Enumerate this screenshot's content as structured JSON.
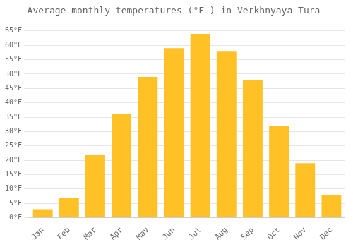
{
  "chart_data": {
    "type": "bar",
    "title": "Average monthly temperatures (°F ) in Verkhnyaya Tura",
    "categories": [
      "Jan",
      "Feb",
      "Mar",
      "Apr",
      "May",
      "Jun",
      "Jul",
      "Aug",
      "Sep",
      "Oct",
      "Nov",
      "Dec"
    ],
    "values": [
      3,
      7,
      22,
      36,
      49,
      59,
      64,
      58,
      48,
      32,
      19,
      8
    ],
    "color": "#FFC125",
    "ylim": [
      0,
      68
    ],
    "yticks": [
      {
        "value": 0,
        "label": "0°F"
      },
      {
        "value": 5,
        "label": "5°F"
      },
      {
        "value": 10,
        "label": "10°F"
      },
      {
        "value": 15,
        "label": "15°F"
      },
      {
        "value": 20,
        "label": "20°F"
      },
      {
        "value": 25,
        "label": "25°F"
      },
      {
        "value": 30,
        "label": "30°F"
      },
      {
        "value": 35,
        "label": "35°F"
      },
      {
        "value": 40,
        "label": "40°F"
      },
      {
        "value": 45,
        "label": "45°F"
      },
      {
        "value": 50,
        "label": "50°F"
      },
      {
        "value": 55,
        "label": "55°F"
      },
      {
        "value": 60,
        "label": "60°F"
      },
      {
        "value": 65,
        "label": "65°F"
      }
    ],
    "grid": true
  }
}
